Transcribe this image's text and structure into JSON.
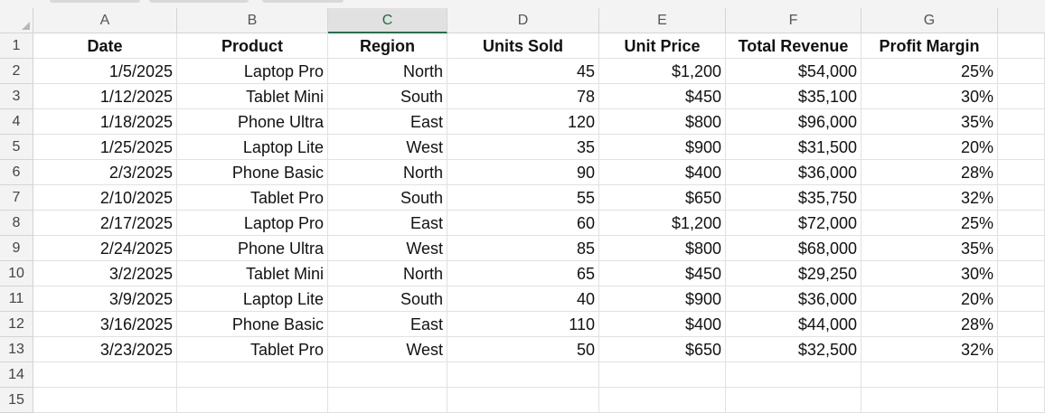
{
  "columns": [
    "A",
    "B",
    "C",
    "D",
    "E",
    "F",
    "G"
  ],
  "selected_column": "C",
  "row_numbers": [
    "1",
    "2",
    "3",
    "4",
    "5",
    "6",
    "7",
    "8",
    "9",
    "10",
    "11",
    "12",
    "13",
    "14",
    "15"
  ],
  "headers": [
    "Date",
    "Product",
    "Region",
    "Units Sold",
    "Unit Price",
    "Total Revenue",
    "Profit Margin"
  ],
  "rows": [
    [
      "1/5/2025",
      "Laptop Pro",
      "North",
      "45",
      "$1,200",
      "$54,000",
      "25%"
    ],
    [
      "1/12/2025",
      "Tablet Mini",
      "South",
      "78",
      "$450",
      "$35,100",
      "30%"
    ],
    [
      "1/18/2025",
      "Phone Ultra",
      "East",
      "120",
      "$800",
      "$96,000",
      "35%"
    ],
    [
      "1/25/2025",
      "Laptop Lite",
      "West",
      "35",
      "$900",
      "$31,500",
      "20%"
    ],
    [
      "2/3/2025",
      "Phone Basic",
      "North",
      "90",
      "$400",
      "$36,000",
      "28%"
    ],
    [
      "2/10/2025",
      "Tablet Pro",
      "South",
      "55",
      "$650",
      "$35,750",
      "32%"
    ],
    [
      "2/17/2025",
      "Laptop Pro",
      "East",
      "60",
      "$1,200",
      "$72,000",
      "25%"
    ],
    [
      "2/24/2025",
      "Phone Ultra",
      "West",
      "85",
      "$800",
      "$68,000",
      "35%"
    ],
    [
      "3/2/2025",
      "Tablet Mini",
      "North",
      "65",
      "$450",
      "$29,250",
      "30%"
    ],
    [
      "3/9/2025",
      "Laptop Lite",
      "South",
      "40",
      "$900",
      "$36,000",
      "20%"
    ],
    [
      "3/16/2025",
      "Phone Basic",
      "East",
      "110",
      "$400",
      "$44,000",
      "28%"
    ],
    [
      "3/23/2025",
      "Tablet Pro",
      "West",
      "50",
      "$650",
      "$32,500",
      "32%"
    ]
  ],
  "colors": {
    "header_bg": "#f3f3f3",
    "selected_header_bg": "#e1e1e1",
    "selection_accent": "#217346",
    "gridline": "#e1e1e1"
  }
}
